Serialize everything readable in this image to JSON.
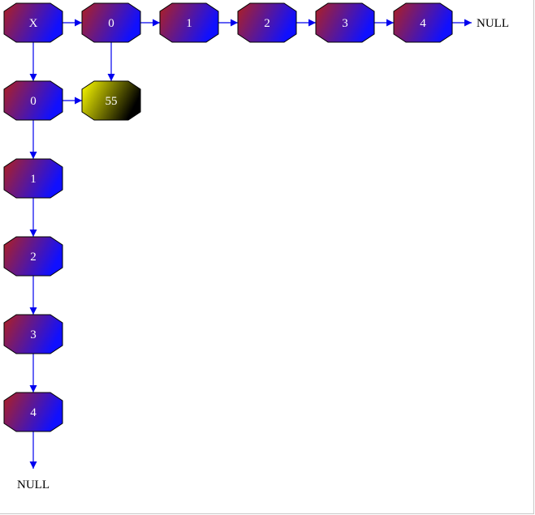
{
  "diagram": {
    "corner_node": {
      "label": "X"
    },
    "header_row": [
      {
        "label": "0"
      },
      {
        "label": "1"
      },
      {
        "label": "2"
      },
      {
        "label": "3"
      },
      {
        "label": "4"
      }
    ],
    "header_column": [
      {
        "label": "0"
      },
      {
        "label": "1"
      },
      {
        "label": "2"
      },
      {
        "label": "3"
      },
      {
        "label": "4"
      }
    ],
    "cells": [
      {
        "label": "55",
        "row": 0,
        "col": 0
      }
    ],
    "terminators": {
      "row_end": "NULL",
      "column_end": "NULL"
    },
    "colors": {
      "node_gradient_start": "#b02020",
      "node_gradient_end": "#1010ff",
      "cell_gradient_start": "#ffff00",
      "cell_gradient_end": "#000000",
      "edge": "#0000ee",
      "outline": "#000000"
    }
  }
}
